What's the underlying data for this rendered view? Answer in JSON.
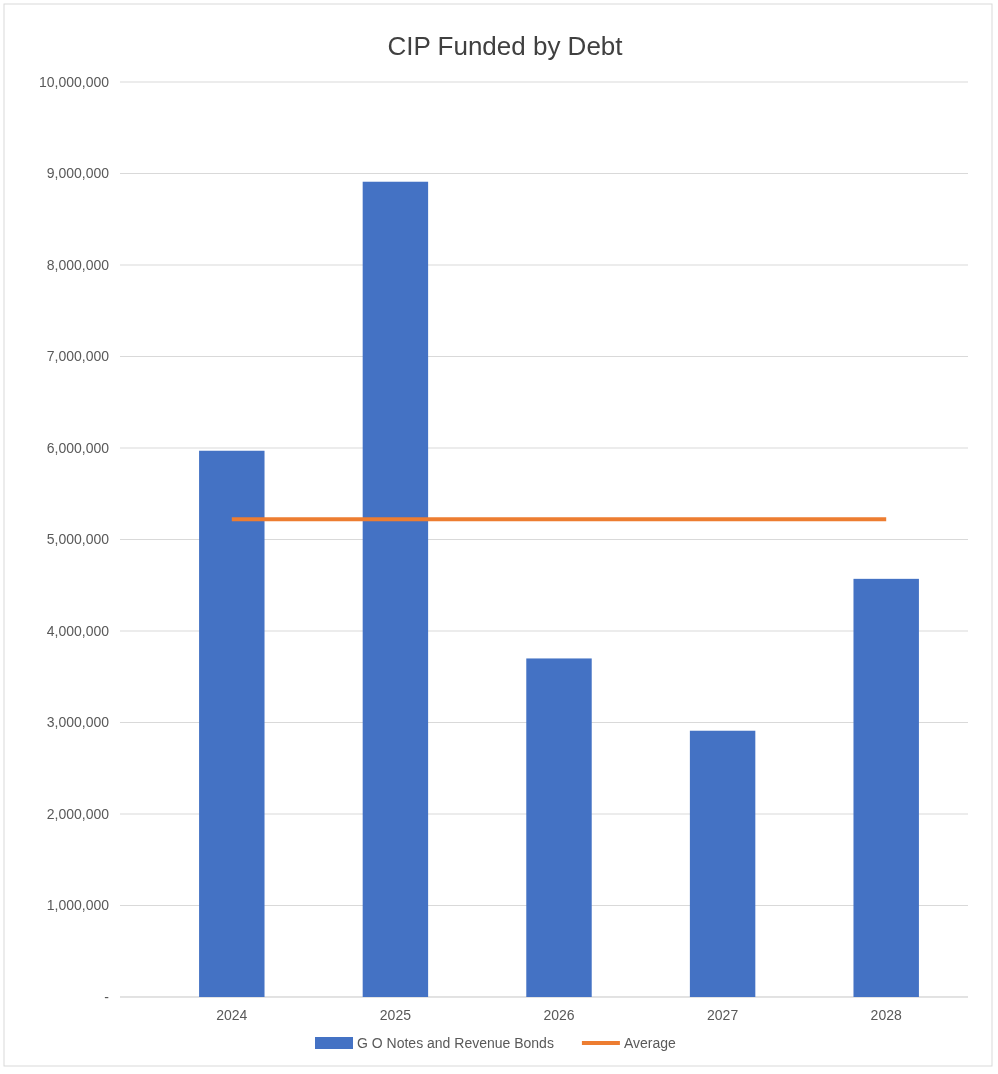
{
  "chart_data": {
    "type": "bar",
    "title": "CIP Funded by Debt",
    "categories": [
      "2024",
      "2025",
      "2026",
      "2027",
      "2028"
    ],
    "series": [
      {
        "name": "G O Notes and Revenue Bonds",
        "color": "#4472c4",
        "values": [
          5970000,
          8910000,
          3700000,
          2910000,
          4570000
        ]
      },
      {
        "name": "Average",
        "type": "line",
        "color": "#ed7d31",
        "values": [
          5220000,
          5220000,
          5220000,
          5220000,
          5220000
        ]
      }
    ],
    "ylim": [
      0,
      10000000
    ],
    "yticks": [
      {
        "value": 0,
        "label": "-"
      },
      {
        "value": 1000000,
        "label": "1,000,000"
      },
      {
        "value": 2000000,
        "label": "2,000,000"
      },
      {
        "value": 3000000,
        "label": "3,000,000"
      },
      {
        "value": 4000000,
        "label": "4,000,000"
      },
      {
        "value": 5000000,
        "label": "5,000,000"
      },
      {
        "value": 6000000,
        "label": "6,000,000"
      },
      {
        "value": 7000000,
        "label": "7,000,000"
      },
      {
        "value": 8000000,
        "label": "8,000,000"
      },
      {
        "value": 9000000,
        "label": "9,000,000"
      },
      {
        "value": 10000000,
        "label": "10,000,000"
      }
    ],
    "grid": "y",
    "legend": "bottom"
  }
}
